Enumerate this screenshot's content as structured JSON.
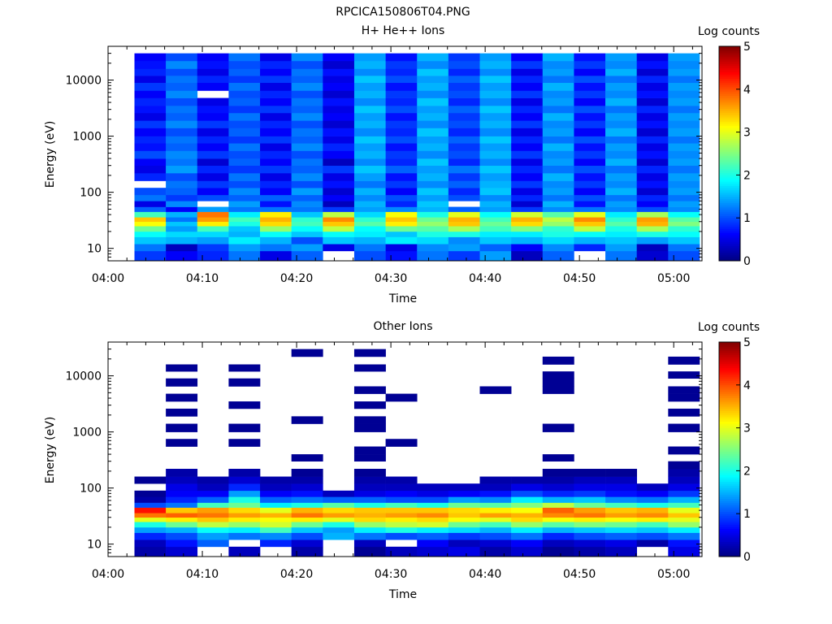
{
  "figure_title": "RPCICA150806T04.PNG",
  "colorbar_ticks": [
    "0",
    "1",
    "2",
    "3",
    "4",
    "5"
  ],
  "chart_data": [
    {
      "type": "heatmap",
      "title": "H+ He++ Ions",
      "xlabel": "Time",
      "ylabel": "Energy (eV)",
      "colorbar_label": "Log counts",
      "colorbar_range": [
        0,
        5
      ],
      "colormap": "jet",
      "y_scale": "log",
      "x_ticks": [
        "04:00",
        "04:10",
        "04:20",
        "04:30",
        "04:40",
        "04:50",
        "05:00"
      ],
      "y_ticks": [
        "10",
        "100",
        "1000",
        "10000"
      ],
      "time_bins": 18,
      "energy_bins": [
        6,
        9,
        12,
        16,
        20,
        25,
        30,
        36,
        45,
        55,
        70,
        90,
        120,
        160,
        220,
        300,
        400,
        550,
        750,
        1000,
        1400,
        1900,
        2600,
        3500,
        4800,
        6500,
        9000,
        12000,
        16000,
        22000,
        30000
      ],
      "ylim": [
        6,
        40000
      ],
      "columns": [
        [
          0.9,
          1.2,
          1.6,
          1.9,
          2.4,
          3.1,
          3.4,
          2.2,
          1.1,
          0.5,
          1.2,
          1.0,
          null,
          0.8,
          0.5,
          0.6,
          1.0,
          0.7,
          0.8,
          0.6,
          0.9,
          0.5,
          0.7,
          0.8,
          0.6,
          0.9,
          0.5,
          0.8,
          0.7,
          0.6
        ],
        [
          0.6,
          0.3,
          1.5,
          1.7,
          1.4,
          1.6,
          1.2,
          1.5,
          0.6,
          1.3,
          0.9,
          1.1,
          1.2,
          1.0,
          1.4,
          1.2,
          1.3,
          1.1,
          1.2,
          1.0,
          1.3,
          1.1,
          1.2,
          1.0,
          1.3,
          1.1,
          1.2,
          1.0,
          1.3,
          1.0
        ],
        [
          0.8,
          0.9,
          1.4,
          1.7,
          2.2,
          3.2,
          3.6,
          3.8,
          1.4,
          null,
          1.0,
          0.6,
          0.9,
          0.5,
          0.8,
          0.4,
          0.9,
          0.6,
          0.8,
          0.5,
          0.9,
          0.6,
          0.7,
          0.5,
          null,
          0.6,
          0.8,
          0.5,
          0.7,
          0.6
        ],
        [
          1.2,
          1.4,
          1.8,
          1.5,
          1.6,
          2.0,
          2.2,
          1.8,
          1.2,
          1.4,
          1.1,
          1.3,
          1.0,
          1.2,
          0.9,
          1.1,
          1.0,
          1.2,
          0.9,
          1.1,
          1.0,
          1.2,
          0.9,
          1.1,
          1.0,
          1.2,
          0.9,
          1.1,
          1.0,
          1.2
        ],
        [
          0.5,
          1.2,
          1.5,
          1.9,
          2.6,
          3.3,
          3.5,
          3.2,
          1.2,
          0.7,
          1.1,
          0.6,
          0.8,
          0.5,
          0.9,
          0.6,
          0.8,
          0.5,
          0.9,
          0.6,
          0.8,
          0.5,
          0.9,
          0.6,
          0.8,
          0.5,
          0.9,
          0.6,
          0.8,
          0.5
        ],
        [
          1.1,
          1.4,
          1.0,
          1.6,
          1.9,
          2.2,
          2.1,
          1.6,
          1.2,
          1.3,
          1.1,
          1.4,
          1.0,
          1.3,
          1.1,
          1.2,
          1.0,
          1.3,
          1.1,
          1.2,
          1.0,
          1.3,
          1.1,
          1.2,
          1.0,
          1.3,
          1.1,
          1.2,
          1.0,
          1.3
        ],
        [
          null,
          0.5,
          1.6,
          1.9,
          2.8,
          3.4,
          3.7,
          2.8,
          0.9,
          0.3,
          0.6,
          0.4,
          0.7,
          0.5,
          0.9,
          0.3,
          0.6,
          0.8,
          0.5,
          0.7,
          0.4,
          0.6,
          0.5,
          0.7,
          0.4,
          0.6,
          0.5,
          0.7,
          0.4,
          0.6
        ],
        [
          1.0,
          1.2,
          1.5,
          1.8,
          1.9,
          2.3,
          2.1,
          1.7,
          1.4,
          1.5,
          1.3,
          1.5,
          1.2,
          1.4,
          1.6,
          1.3,
          1.5,
          1.4,
          1.6,
          1.3,
          1.5,
          1.4,
          1.6,
          1.3,
          1.5,
          1.4,
          1.6,
          1.3,
          1.5,
          1.4
        ],
        [
          0.7,
          0.5,
          1.8,
          1.6,
          2.4,
          3.2,
          3.4,
          3.1,
          1.3,
          0.8,
          1.0,
          0.6,
          0.9,
          0.7,
          1.1,
          0.8,
          0.9,
          0.7,
          1.0,
          0.8,
          0.9,
          0.7,
          1.0,
          0.8,
          0.9,
          0.7,
          1.0,
          0.8,
          0.9,
          0.7
        ],
        [
          1.2,
          1.3,
          1.7,
          2.0,
          2.3,
          2.6,
          2.4,
          2.0,
          1.5,
          1.6,
          1.4,
          1.6,
          1.3,
          1.5,
          1.4,
          1.6,
          1.3,
          1.5,
          1.4,
          1.6,
          1.3,
          1.5,
          1.4,
          1.6,
          1.3,
          1.5,
          1.4,
          1.6,
          1.3,
          1.5
        ],
        [
          0.9,
          1.4,
          1.3,
          2.0,
          2.7,
          3.4,
          3.5,
          3.0,
          1.1,
          null,
          1.0,
          0.8,
          1.1,
          0.9,
          1.2,
          0.8,
          1.0,
          0.9,
          1.1,
          0.8,
          1.0,
          0.9,
          1.1,
          0.8,
          1.0,
          0.9,
          1.1,
          0.8,
          1.0,
          0.9
        ],
        [
          1.4,
          1.1,
          1.6,
          1.8,
          2.2,
          2.4,
          2.2,
          1.9,
          1.4,
          1.5,
          1.3,
          1.6,
          1.5,
          1.4,
          1.6,
          1.3,
          1.5,
          1.4,
          1.6,
          1.3,
          1.5,
          1.4,
          1.6,
          1.3,
          1.5,
          1.4,
          1.6,
          1.3,
          1.5,
          1.4
        ],
        [
          0.3,
          0.6,
          1.5,
          1.8,
          2.5,
          3.3,
          3.5,
          2.9,
          0.9,
          0.4,
          0.8,
          0.5,
          0.9,
          0.6,
          0.8,
          0.5,
          0.9,
          0.6,
          0.8,
          0.5,
          0.9,
          0.6,
          0.8,
          0.5,
          0.9,
          0.6,
          0.8,
          0.5,
          0.9,
          0.6
        ],
        [
          1.1,
          1.3,
          1.7,
          2.0,
          2.1,
          2.6,
          2.8,
          2.3,
          1.3,
          1.5,
          1.2,
          1.4,
          1.3,
          1.5,
          1.2,
          1.4,
          1.3,
          1.5,
          1.2,
          1.4,
          1.3,
          1.5,
          1.2,
          1.4,
          1.3,
          1.5,
          1.2,
          1.4,
          1.3,
          1.5
        ],
        [
          null,
          0.8,
          1.5,
          1.9,
          2.8,
          3.4,
          3.7,
          3.0,
          1.2,
          0.7,
          1.0,
          0.6,
          0.9,
          0.7,
          1.0,
          0.6,
          0.9,
          0.7,
          1.0,
          0.6,
          0.9,
          0.7,
          1.0,
          0.6,
          0.9,
          0.7,
          1.0,
          0.6,
          0.9,
          0.7
        ],
        [
          1.2,
          1.4,
          1.6,
          1.8,
          2.0,
          2.3,
          2.1,
          1.8,
          1.3,
          1.4,
          1.2,
          1.5,
          1.3,
          1.4,
          1.2,
          1.5,
          1.3,
          1.4,
          1.2,
          1.5,
          1.3,
          1.4,
          1.2,
          1.5,
          1.3,
          1.4,
          1.2,
          1.5,
          1.3,
          1.4
        ],
        [
          0.4,
          0.3,
          1.4,
          2.0,
          2.7,
          3.5,
          3.6,
          2.7,
          1.0,
          0.6,
          0.8,
          0.4,
          0.7,
          0.5,
          0.8,
          0.4,
          0.7,
          0.5,
          0.8,
          0.4,
          0.7,
          0.5,
          0.8,
          0.4,
          0.7,
          0.5,
          0.8,
          0.4,
          0.7,
          0.5
        ],
        [
          1.0,
          1.2,
          1.6,
          1.9,
          2.1,
          2.5,
          2.3,
          1.9,
          1.3,
          1.4,
          1.2,
          1.4,
          1.3,
          1.4,
          1.2,
          1.4,
          1.3,
          1.4,
          1.2,
          1.4,
          1.3,
          1.4,
          1.2,
          1.4,
          1.3,
          1.4,
          1.2,
          1.4,
          1.3,
          1.4
        ]
      ]
    },
    {
      "type": "heatmap",
      "title": "Other Ions",
      "xlabel": "Time",
      "ylabel": "Energy (eV)",
      "colorbar_label": "Log counts",
      "colorbar_range": [
        0,
        5
      ],
      "colormap": "jet",
      "y_scale": "log",
      "x_ticks": [
        "04:00",
        "04:10",
        "04:20",
        "04:30",
        "04:40",
        "04:50",
        "05:00"
      ],
      "y_ticks": [
        "10",
        "100",
        "1000",
        "10000"
      ],
      "time_bins": 18,
      "energy_bins": [
        6,
        9,
        12,
        16,
        20,
        25,
        30,
        36,
        45,
        55,
        70,
        90,
        120,
        160,
        220,
        300,
        400,
        550,
        750,
        1000,
        1400,
        1900,
        2600,
        3500,
        4800,
        6500,
        9000,
        12000,
        16000,
        22000,
        30000
      ],
      "ylim": [
        6,
        40000
      ],
      "columns": [
        [
          0.2,
          0.3,
          0.8,
          1.4,
          2.0,
          3.0,
          3.8,
          4.3,
          1.0,
          0.2,
          0.1,
          null,
          0.1,
          null,
          null,
          null,
          null,
          null,
          null,
          null,
          null,
          null,
          null,
          null,
          null,
          null,
          null,
          null,
          null,
          null
        ],
        [
          0.4,
          0.7,
          1.0,
          1.5,
          2.4,
          3.2,
          3.9,
          3.4,
          1.2,
          0.8,
          0.6,
          0.5,
          0.3,
          0.2,
          null,
          null,
          null,
          0.1,
          null,
          0.1,
          null,
          0.1,
          null,
          0.1,
          null,
          0.1,
          null,
          0.1,
          null,
          null
        ],
        [
          null,
          1.1,
          1.4,
          1.9,
          2.8,
          3.4,
          3.8,
          3.6,
          2.2,
          1.1,
          0.6,
          0.3,
          0.2,
          null,
          null,
          null,
          null,
          null,
          null,
          null,
          null,
          null,
          null,
          null,
          null,
          null,
          null,
          null,
          null,
          null
        ],
        [
          0.3,
          null,
          1.2,
          1.8,
          2.6,
          3.2,
          3.6,
          3.3,
          2.4,
          2.0,
          1.4,
          0.8,
          0.4,
          0.2,
          null,
          null,
          null,
          0.1,
          null,
          0.1,
          null,
          null,
          0.1,
          null,
          null,
          0.1,
          null,
          0.1,
          null,
          null
        ],
        [
          null,
          0.8,
          1.3,
          2.2,
          2.9,
          3.1,
          3.5,
          3.0,
          1.8,
          1.1,
          0.6,
          0.3,
          0.2,
          null,
          null,
          null,
          null,
          null,
          null,
          null,
          null,
          null,
          null,
          null,
          null,
          null,
          null,
          null,
          null,
          null
        ],
        [
          0.2,
          0.4,
          1.0,
          1.6,
          2.4,
          3.2,
          3.8,
          3.5,
          2.0,
          1.2,
          0.7,
          0.4,
          0.2,
          0.1,
          null,
          0.1,
          null,
          null,
          null,
          null,
          0.1,
          null,
          null,
          null,
          null,
          null,
          null,
          null,
          null,
          0.1
        ],
        [
          null,
          null,
          1.5,
          1.4,
          2.0,
          3.0,
          3.6,
          3.3,
          2.3,
          1.1,
          0.3,
          null,
          null,
          null,
          null,
          null,
          null,
          null,
          null,
          null,
          null,
          null,
          null,
          null,
          null,
          null,
          null,
          null,
          null,
          null
        ],
        [
          0.1,
          0.3,
          1.2,
          1.8,
          2.6,
          3.3,
          3.5,
          3.4,
          2.0,
          1.1,
          0.5,
          0.3,
          0.2,
          0.1,
          null,
          0.1,
          0.1,
          null,
          null,
          0.1,
          0.1,
          null,
          0.1,
          null,
          0.1,
          null,
          null,
          0.1,
          null,
          0.1
        ],
        [
          0.3,
          null,
          1.0,
          2.0,
          2.8,
          3.2,
          3.6,
          3.4,
          2.2,
          1.0,
          0.6,
          0.3,
          0.2,
          null,
          null,
          null,
          null,
          0.1,
          null,
          null,
          null,
          null,
          null,
          0.1,
          null,
          null,
          null,
          null,
          null,
          null
        ],
        [
          0.4,
          0.6,
          1.1,
          1.8,
          2.9,
          3.3,
          3.7,
          3.4,
          2.0,
          1.0,
          0.5,
          0.3,
          null,
          null,
          null,
          null,
          null,
          null,
          null,
          null,
          null,
          null,
          null,
          null,
          null,
          null,
          null,
          null,
          null,
          null
        ],
        [
          0.5,
          0.3,
          0.9,
          1.7,
          2.4,
          3.1,
          3.4,
          3.3,
          2.4,
          1.4,
          0.6,
          0.3,
          null,
          null,
          null,
          null,
          null,
          null,
          null,
          null,
          null,
          null,
          null,
          null,
          null,
          null,
          null,
          null,
          null,
          null
        ],
        [
          0.2,
          0.4,
          1.0,
          1.5,
          2.2,
          3.0,
          3.6,
          3.2,
          2.3,
          1.3,
          0.7,
          0.3,
          0.2,
          null,
          null,
          null,
          null,
          null,
          null,
          null,
          null,
          null,
          null,
          null,
          0.1,
          null,
          null,
          null,
          null,
          null
        ],
        [
          0.4,
          0.6,
          1.2,
          1.8,
          2.6,
          3.3,
          3.5,
          3.1,
          2.5,
          1.8,
          1.0,
          0.5,
          0.2,
          null,
          null,
          null,
          null,
          null,
          null,
          null,
          null,
          null,
          null,
          null,
          null,
          null,
          null,
          null,
          null,
          null
        ],
        [
          0.1,
          0.3,
          0.8,
          1.5,
          2.3,
          3.1,
          3.7,
          3.9,
          2.8,
          1.5,
          0.8,
          0.4,
          0.2,
          0.1,
          null,
          0.1,
          null,
          null,
          null,
          0.1,
          null,
          null,
          null,
          null,
          0.1,
          0.1,
          0.1,
          null,
          0.1,
          null
        ],
        [
          0.2,
          0.4,
          1.0,
          1.6,
          2.5,
          3.2,
          3.8,
          3.6,
          2.4,
          1.6,
          0.9,
          0.5,
          0.3,
          0.1,
          null,
          null,
          null,
          null,
          null,
          null,
          null,
          null,
          null,
          null,
          null,
          null,
          null,
          null,
          null,
          null
        ],
        [
          0.3,
          0.5,
          1.1,
          1.7,
          2.4,
          3.1,
          3.6,
          3.4,
          2.2,
          1.3,
          0.7,
          0.5,
          0.3,
          0.1,
          null,
          null,
          null,
          null,
          null,
          null,
          null,
          null,
          null,
          null,
          null,
          null,
          null,
          null,
          null,
          null
        ],
        [
          null,
          0.2,
          1.0,
          1.6,
          2.2,
          3.2,
          3.7,
          3.5,
          2.0,
          1.2,
          0.6,
          0.3,
          null,
          null,
          null,
          null,
          null,
          null,
          null,
          null,
          null,
          null,
          null,
          null,
          null,
          null,
          null,
          null,
          null,
          null
        ],
        [
          0.5,
          0.7,
          1.2,
          1.8,
          2.6,
          3.0,
          3.4,
          3.0,
          2.2,
          1.5,
          0.9,
          0.5,
          0.3,
          0.2,
          0.1,
          null,
          0.1,
          null,
          null,
          0.1,
          null,
          0.1,
          null,
          0.1,
          0.1,
          null,
          0.1,
          null,
          0.1,
          null
        ]
      ]
    }
  ]
}
